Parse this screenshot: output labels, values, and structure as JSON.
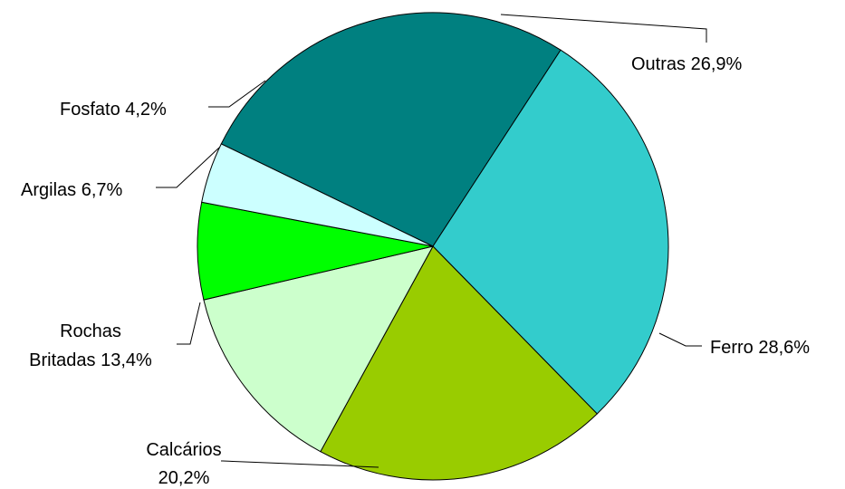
{
  "chart_data": {
    "type": "pie",
    "slices": [
      {
        "label": "Outras 26,9%",
        "value": 26.9,
        "color": "#008080"
      },
      {
        "label": "Ferro 28,6%",
        "value": 28.6,
        "color": "#33cccc"
      },
      {
        "label": "Calcários 20,2%",
        "value": 20.2,
        "color": "#99cc00"
      },
      {
        "label": "Rochas Britadas 13,4%",
        "value": 13.4,
        "color": "#ccffcc"
      },
      {
        "label": "Argilas 6,7%",
        "value": 6.7,
        "color": "#00ff00"
      },
      {
        "label": "Fosfato 4,2%",
        "value": 4.2,
        "color": "#ccffff"
      }
    ],
    "legend": "none",
    "labels": "outside-with-leader-lines"
  }
}
